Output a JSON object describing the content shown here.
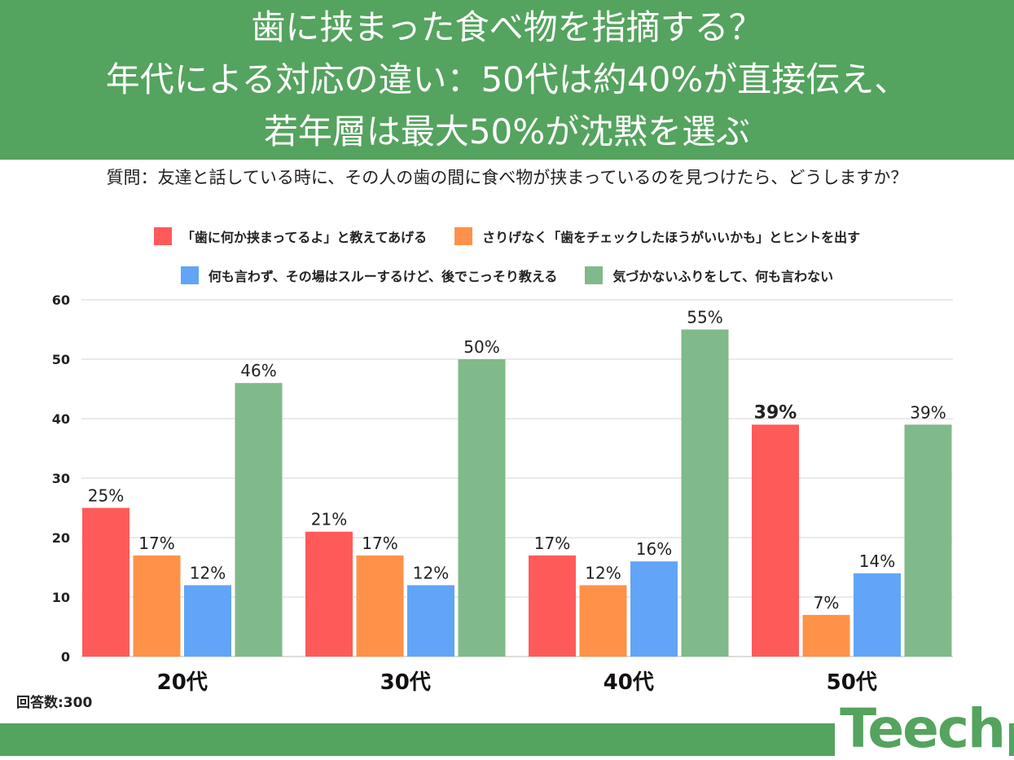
{
  "header": {
    "line1": "歯に挟まった食べ物を指摘する？",
    "line2": "年代による対応の違い：50代は約40%が直接伝え、",
    "line3": "若年層は最大50%が沈黙を選ぶ"
  },
  "question": "質問：友達と話している時に、その人の歯の間に食べ物が挟まっているのを見つけたら、どうしますか？",
  "footnote": "回答数:300",
  "logo": "Teech",
  "chart_data": {
    "type": "bar",
    "title": "",
    "categories": [
      "20代",
      "30代",
      "40代",
      "50代"
    ],
    "ylim": [
      0,
      60
    ],
    "yticks": [
      0,
      10,
      20,
      30,
      40,
      50,
      60
    ],
    "grid": true,
    "legend_position": "top",
    "series": [
      {
        "name": "「歯に何か挟まってるよ」と教えてあげる",
        "color": "#ff5a5a",
        "values": [
          25,
          21,
          17,
          39
        ],
        "labels": [
          "25%",
          "21%",
          "17%",
          "39%"
        ]
      },
      {
        "name": "さりげなく「歯をチェックしたほうがいいかも」とヒントを出す",
        "color": "#ff9248",
        "values": [
          17,
          17,
          12,
          7
        ],
        "labels": [
          "17%",
          "17%",
          "12%",
          "7%"
        ]
      },
      {
        "name": "何も言わず、その場はスルーするけど、後でこっそり教える",
        "color": "#62a4f7",
        "values": [
          12,
          12,
          16,
          14
        ],
        "labels": [
          "12%",
          "12%",
          "16%",
          "14%"
        ]
      },
      {
        "name": "気づかないふりをして、何も言わない",
        "color": "#80b98a",
        "values": [
          46,
          50,
          55,
          39
        ],
        "labels": [
          "46%",
          "50%",
          "55%",
          "39%"
        ]
      }
    ]
  }
}
